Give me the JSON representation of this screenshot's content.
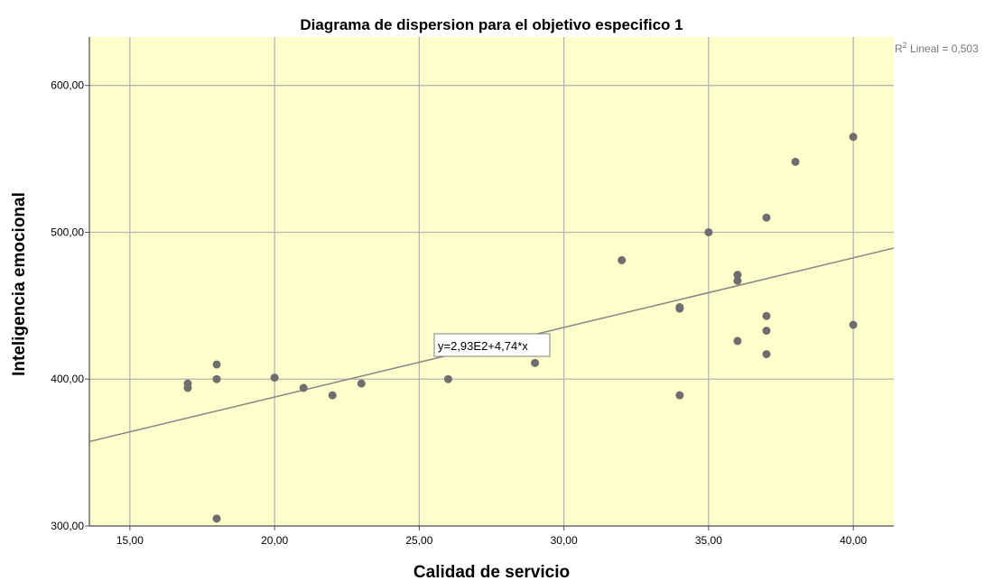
{
  "chart_data": {
    "type": "scatter",
    "title": "Diagrama de dispersion para el objetivo especifico 1",
    "xlabel": "Calidad de servicio",
    "ylabel": "Inteligencia emocional",
    "xlim": [
      13.6,
      41.4
    ],
    "ylim": [
      300,
      633
    ],
    "x_ticks": [
      15,
      20,
      25,
      30,
      35,
      40
    ],
    "x_tick_labels": [
      "15,00",
      "20,00",
      "25,00",
      "30,00",
      "35,00",
      "40,00"
    ],
    "y_ticks": [
      300,
      400,
      500,
      600
    ],
    "y_tick_labels": [
      "300,00",
      "400,00",
      "500,00",
      "600,00"
    ],
    "grid": true,
    "plot_background": "#ffffcc",
    "point_color": "#6e6e6e",
    "fit_line_color": "#8a8a8a",
    "grid_color": "#b4b4b4",
    "points": [
      {
        "x": 17,
        "y": 397
      },
      {
        "x": 17,
        "y": 394
      },
      {
        "x": 18,
        "y": 410
      },
      {
        "x": 18,
        "y": 400
      },
      {
        "x": 18,
        "y": 305
      },
      {
        "x": 20,
        "y": 401
      },
      {
        "x": 21,
        "y": 394
      },
      {
        "x": 22,
        "y": 389
      },
      {
        "x": 23,
        "y": 397
      },
      {
        "x": 26,
        "y": 400
      },
      {
        "x": 29,
        "y": 411
      },
      {
        "x": 32,
        "y": 481
      },
      {
        "x": 34,
        "y": 449
      },
      {
        "x": 34,
        "y": 448
      },
      {
        "x": 34,
        "y": 389
      },
      {
        "x": 35,
        "y": 500
      },
      {
        "x": 36,
        "y": 471
      },
      {
        "x": 36,
        "y": 467
      },
      {
        "x": 36,
        "y": 426
      },
      {
        "x": 37,
        "y": 510
      },
      {
        "x": 37,
        "y": 443
      },
      {
        "x": 37,
        "y": 433
      },
      {
        "x": 37,
        "y": 417
      },
      {
        "x": 38,
        "y": 548
      },
      {
        "x": 40,
        "y": 565
      },
      {
        "x": 40,
        "y": 437
      }
    ],
    "fit_line": {
      "intercept": 293,
      "slope": 4.74,
      "equation_label": "y=2,93E2+4,74*x",
      "r2_label": "R",
      "r2_sup": "2",
      "r2_text": " Lineal = 0,503"
    }
  }
}
